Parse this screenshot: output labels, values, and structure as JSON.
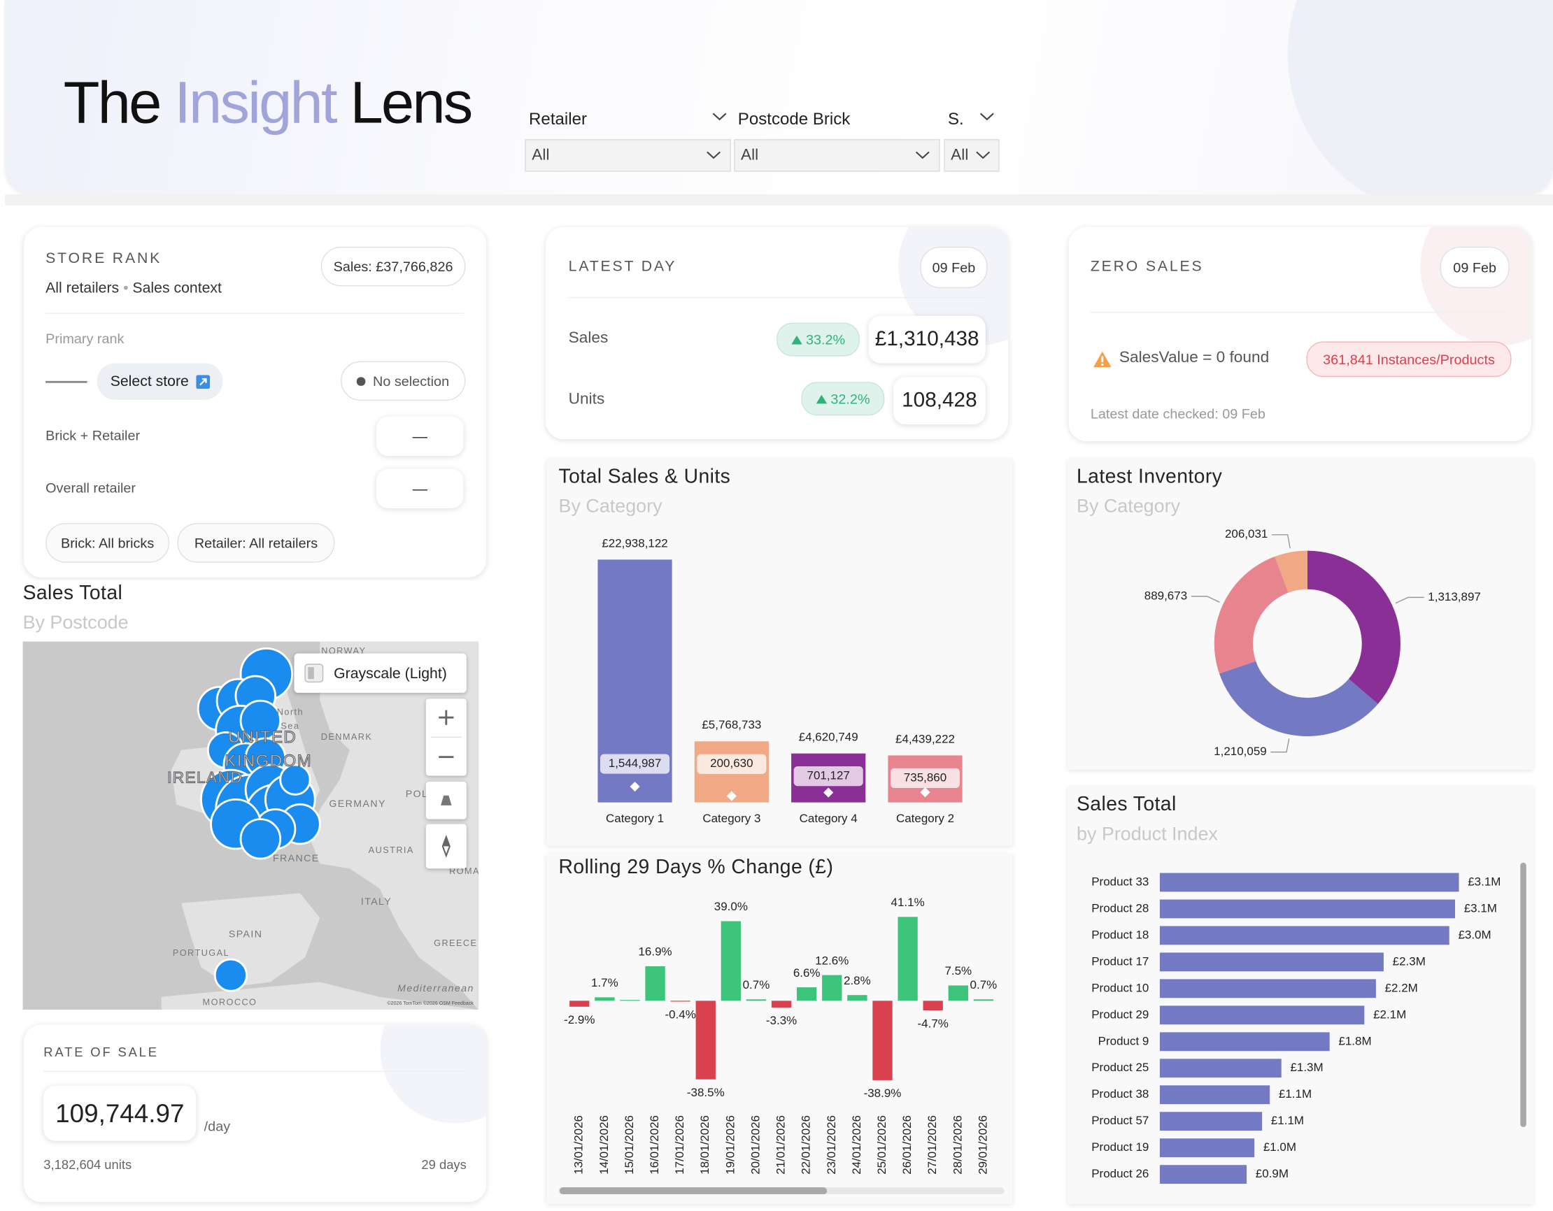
{
  "header": {
    "title": [
      "The",
      "Insight",
      "Lens"
    ]
  },
  "filters": [
    {
      "label": "Retailer",
      "value": "All"
    },
    {
      "label": "Postcode Brick",
      "value": "All"
    },
    {
      "label": "S.",
      "value": "All"
    }
  ],
  "store_rank": {
    "title": "STORE RANK",
    "total": "Sales: £37,766,826",
    "scope": "All retailers",
    "separator": "•",
    "context": "Sales context",
    "primary_label": "Primary rank",
    "select_button": "Select store",
    "selection": "No selection",
    "rows": [
      {
        "label": "Brick + Retailer",
        "value": "—"
      },
      {
        "label": "Overall retailer",
        "value": "—"
      }
    ],
    "chips": [
      "Brick: All bricks",
      "Retailer: All retailers"
    ]
  },
  "latest_day": {
    "title": "LATEST DAY",
    "date": "09 Feb",
    "rows": [
      {
        "label": "Sales",
        "change": "33.2%",
        "value": "£1,310,438"
      },
      {
        "label": "Units",
        "change": "32.2%",
        "value": "108,428"
      }
    ]
  },
  "zero_sales": {
    "title": "ZERO SALES",
    "date": "09 Feb",
    "message": "SalesValue = 0 found",
    "badge": "361,841 Instances/Products",
    "footnote": "Latest date checked: 09 Feb"
  },
  "map": {
    "title": "Sales Total",
    "subtitle": "By Postcode",
    "style_button": "Grayscale (Light)",
    "labels": [
      "NORWAY",
      "North",
      "Sea",
      "DENMARK",
      "UNITED",
      "KINGDOM",
      "IRELAND",
      "GERMANY",
      "POL",
      "FRANCE",
      "AUSTRIA",
      "ROMA",
      "ITALY",
      "SPAIN",
      "PORTUGAL",
      "GREECE",
      "Mediterranean",
      "MOROCCO"
    ],
    "attribution": "©2026 TomTom ©2026 OSM Feedback"
  },
  "rate_of_sale": {
    "title": "RATE OF SALE",
    "value": "109,744.97",
    "unit": "/day",
    "units": "3,182,604 units",
    "period": "29 days"
  },
  "chart_data": [
    {
      "type": "bar",
      "title": "Total Sales & Units",
      "subtitle": "By Category",
      "categories": [
        "Category 1",
        "Category 3",
        "Category 4",
        "Category 2"
      ],
      "colors": [
        "#7479c4",
        "#f0a885",
        "#8a2f96",
        "#e8848e"
      ],
      "series": [
        {
          "values": [
            22938122,
            5768733,
            4620749,
            4439222
          ],
          "value_labels": [
            "£22,938,122",
            "£5,768,733",
            "£4,620,749",
            "£4,439,222"
          ]
        },
        {
          "values": [
            1544987,
            200630,
            701127,
            735860
          ],
          "value_labels": [
            "1,544,987",
            "200,630",
            "701,127",
            "735,860"
          ]
        }
      ]
    },
    {
      "type": "donut",
      "title": "Latest Inventory",
      "subtitle": "By Category",
      "values": [
        1313897,
        1210059,
        889673,
        206031
      ],
      "value_labels": [
        "1,313,897",
        "1,210,059",
        "889,673",
        "206,031"
      ],
      "colors": [
        "#8a2f96",
        "#7479c4",
        "#e8848e",
        "#f0a885"
      ]
    },
    {
      "type": "bar",
      "title": "Rolling 29 Days % Change (£)",
      "categories": [
        "13/01/2026",
        "14/01/2026",
        "15/01/2026",
        "16/01/2026",
        "17/01/2026",
        "18/01/2026",
        "19/01/2026",
        "20/01/2026",
        "21/01/2026",
        "22/01/2026",
        "23/01/2026",
        "24/01/2026",
        "25/01/2026",
        "26/01/2026",
        "27/01/2026",
        "28/01/2026",
        "29/01/2026"
      ],
      "values": [
        -2.9,
        1.7,
        0.4,
        16.9,
        -0.4,
        -38.5,
        39.0,
        0.7,
        -3.3,
        6.6,
        12.6,
        2.8,
        -38.9,
        41.1,
        -4.7,
        7.5,
        0.7
      ],
      "value_labels": [
        "-2.9%",
        "1.7%",
        null,
        "16.9%",
        "-0.4%",
        "-38.5%",
        "39.0%",
        "0.7%",
        "-3.3%",
        "6.6%",
        "12.6%",
        "2.8%",
        "-38.9%",
        "41.1%",
        "-4.7%",
        "7.5%",
        "0.7%"
      ],
      "positive_color": "#3cc47a",
      "negative_color": "#d9414e"
    },
    {
      "type": "bar",
      "orientation": "horizontal",
      "title": "Sales Total",
      "subtitle": "by Product Index",
      "color": "#7479c4",
      "categories": [
        "Product 33",
        "Product 28",
        "Product 18",
        "Product 17",
        "Product 10",
        "Product 29",
        "Product 9",
        "Product 25",
        "Product 38",
        "Product 57",
        "Product 19",
        "Product 26"
      ],
      "values": [
        3100000,
        3060000,
        3000000,
        2320000,
        2240000,
        2120000,
        1760000,
        1260000,
        1140000,
        1060000,
        980000,
        900000
      ],
      "value_labels": [
        "£3.1M",
        "£3.1M",
        "£3.0M",
        "£2.3M",
        "£2.2M",
        "£2.1M",
        "£1.8M",
        "£1.3M",
        "£1.1M",
        "£1.1M",
        "£1.0M",
        "£0.9M"
      ]
    }
  ]
}
